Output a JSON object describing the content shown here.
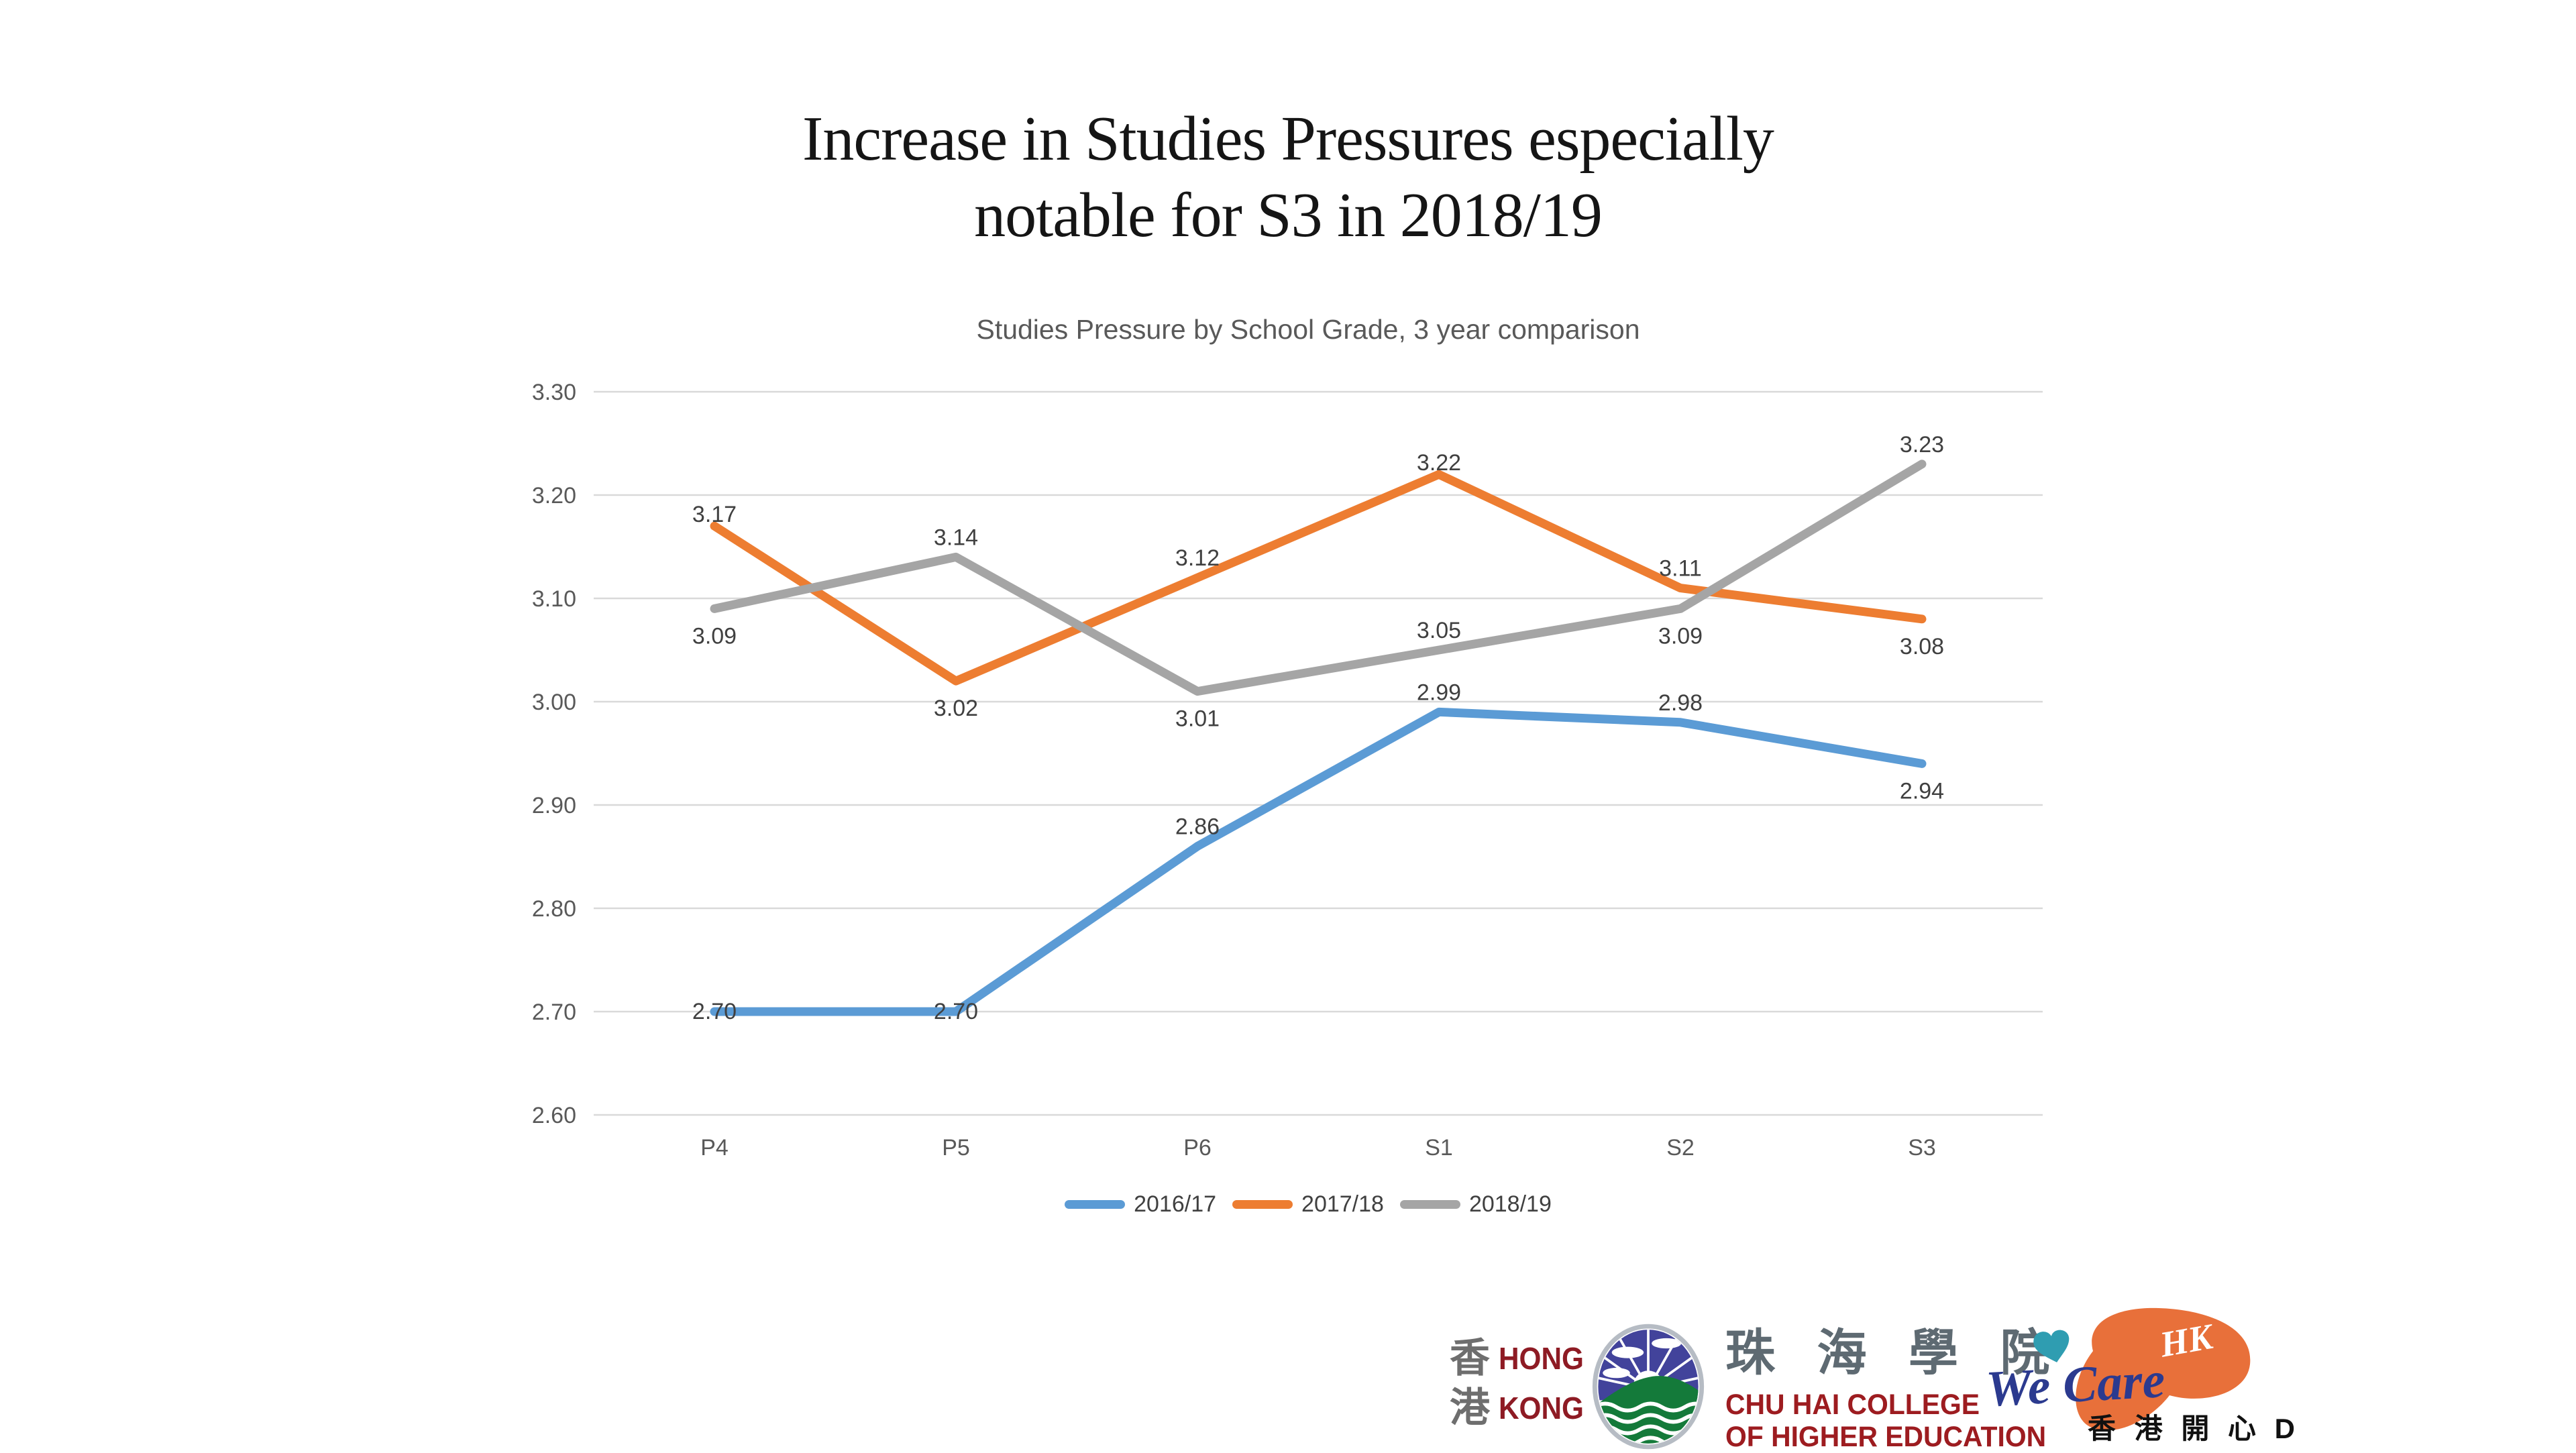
{
  "slide": {
    "title_line1": "Increase in Studies Pressures especially",
    "title_line2": "notable for S3 in 2018/19"
  },
  "chart_data": {
    "type": "line",
    "title": "Studies Pressure by School Grade, 3 year comparison",
    "categories": [
      "P4",
      "P5",
      "P6",
      "S1",
      "S2",
      "S3"
    ],
    "series": [
      {
        "name": "2016/17",
        "color": "#5B9BD5",
        "values": [
          2.7,
          2.7,
          2.86,
          2.99,
          2.98,
          2.94
        ],
        "label_positions": [
          "mid",
          "mid",
          "above",
          "above",
          "above",
          "below"
        ]
      },
      {
        "name": "2017/18",
        "color": "#ED7D31",
        "values": [
          3.17,
          3.02,
          3.12,
          3.22,
          3.11,
          3.08
        ],
        "label_positions": [
          "midabove",
          "below",
          "above",
          "midabove",
          "above",
          "below"
        ]
      },
      {
        "name": "2018/19",
        "color": "#A5A5A5",
        "values": [
          3.09,
          3.14,
          3.01,
          3.05,
          3.09,
          3.23
        ],
        "label_positions": [
          "below",
          "above",
          "below",
          "above",
          "below",
          "above"
        ]
      }
    ],
    "ylim": [
      2.6,
      3.3
    ],
    "ytick_step": 0.1,
    "ytick_format_decimals": 2,
    "grid": "horizontal",
    "legend_position": "bottom",
    "colors": {
      "gridline": "#D9D9D9",
      "axis_text": "#595959",
      "data_label": "#404040"
    }
  },
  "footer": {
    "hk_logo": {
      "char_top": "香",
      "char_bottom": "港",
      "text_top": "HONG",
      "text_bottom": "KONG"
    },
    "chuhai_logo": {
      "calligraphy": "珠 海 學 院",
      "line1": "CHU HAI COLLEGE",
      "line2": "OF HIGHER EDUCATION"
    },
    "wecare_logo": {
      "script": "We Care",
      "hk": "HK",
      "caption": "香 港 開 心 D"
    }
  }
}
